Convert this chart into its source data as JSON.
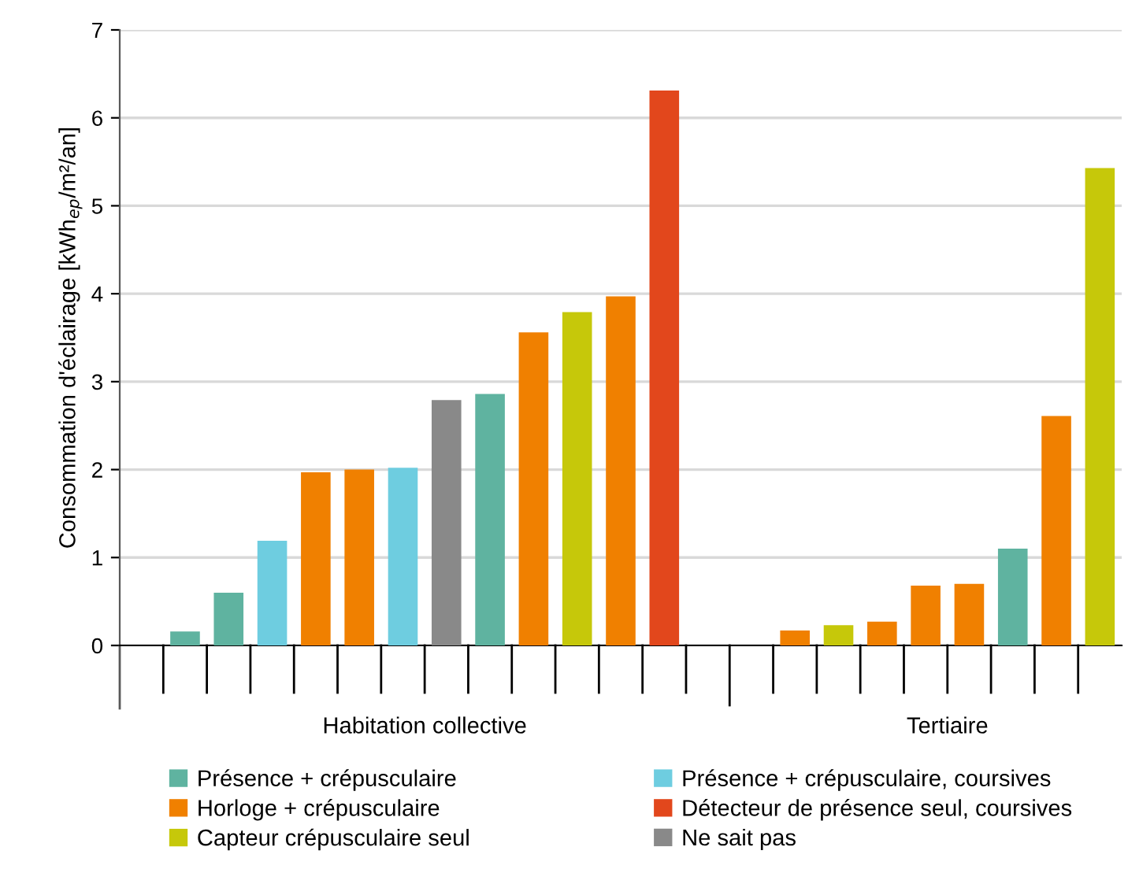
{
  "chart_data": {
    "type": "bar",
    "ylabel": "Consommation d'éclairage [kWh$_{ep}$/m²/an]",
    "categories": [
      null,
      null,
      null,
      null,
      null,
      null,
      null,
      null,
      null,
      null,
      null,
      null,
      null,
      null,
      null,
      null,
      null,
      null,
      null,
      null,
      null,
      null,
      null
    ],
    "series": [
      {
        "name": "Présence + crépusculaire",
        "color": "#5fb3a0",
        "values": [
          null,
          0.16,
          0.6,
          null,
          null,
          null,
          null,
          null,
          2.86,
          null,
          null,
          null,
          null,
          null,
          null,
          null,
          null,
          null,
          null,
          null,
          1.1,
          null,
          null
        ]
      },
      {
        "name": "Horloge + crépusculaire",
        "color": "#f08000",
        "values": [
          null,
          null,
          null,
          null,
          1.97,
          2.0,
          null,
          null,
          null,
          3.56,
          null,
          3.97,
          null,
          null,
          null,
          0.17,
          null,
          0.27,
          0.68,
          0.7,
          null,
          2.61,
          null
        ]
      },
      {
        "name": "Capteur crépusculaire seul",
        "color": "#c6c80a",
        "values": [
          null,
          null,
          null,
          null,
          null,
          null,
          null,
          null,
          null,
          null,
          3.79,
          null,
          null,
          null,
          null,
          null,
          0.23,
          null,
          null,
          null,
          null,
          null,
          5.43
        ]
      },
      {
        "name": "Présence + crépusculaire, coursives",
        "color": "#6ecde0",
        "values": [
          null,
          null,
          null,
          1.19,
          null,
          null,
          2.02,
          null,
          null,
          null,
          null,
          null,
          null,
          null,
          null,
          null,
          null,
          null,
          null,
          null,
          null,
          null,
          null
        ]
      },
      {
        "name": "Détecteur de présence seul, coursives",
        "color": "#e2471c",
        "values": [
          null,
          null,
          null,
          null,
          null,
          null,
          null,
          null,
          null,
          null,
          null,
          null,
          6.31,
          null,
          null,
          null,
          null,
          null,
          null,
          null,
          null,
          null,
          null
        ]
      },
      {
        "name": "Ne sait pas",
        "color": "#898989",
        "values": [
          null,
          null,
          null,
          null,
          null,
          null,
          null,
          2.79,
          null,
          null,
          null,
          null,
          null,
          null,
          null,
          null,
          null,
          null,
          null,
          null,
          null,
          null,
          null
        ]
      }
    ],
    "annotations": [
      "Habitation collective",
      "Tertiaire"
    ],
    "ylim": [
      0,
      7
    ],
    "yticks": [
      0,
      1,
      2,
      3,
      4,
      5,
      6,
      7
    ],
    "grid": "y",
    "legend": "bottom"
  }
}
